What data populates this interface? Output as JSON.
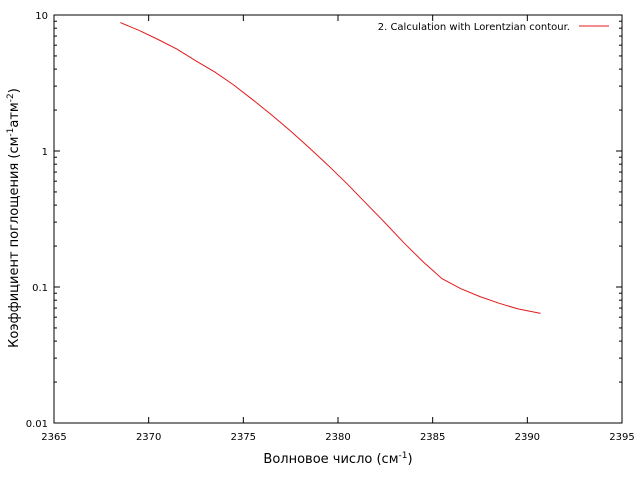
{
  "chart_data": {
    "type": "line",
    "title": "",
    "xlabel": {
      "main": "Волновое число (см",
      "sup": "-1",
      "tail": ")"
    },
    "ylabel": {
      "part1": "Коэффициент поглощения (см",
      "sup1": "-1",
      "part2": "атм",
      "sup2": "-2",
      "part3": ")"
    },
    "xlim": [
      2365,
      2395
    ],
    "ylim": [
      0.01,
      10
    ],
    "yscale": "log",
    "grid": false,
    "legend_position": "top-right",
    "x_ticks": [
      2365,
      2370,
      2375,
      2380,
      2385,
      2390,
      2395
    ],
    "x_tick_labels": [
      "2365",
      "2370",
      "2375",
      "2380",
      "2385",
      "2390",
      "2395"
    ],
    "y_ticks": [
      0.01,
      0.1,
      1,
      10
    ],
    "y_tick_labels": [
      "0.01",
      "0.1",
      "1",
      "10"
    ],
    "series": [
      {
        "name": "2. Calculation with Lorentzian contour.",
        "color": "#e41a1c",
        "x": [
          2368.5,
          2369.5,
          2370.5,
          2371.5,
          2372.5,
          2373.5,
          2374.5,
          2375.5,
          2376.5,
          2377.5,
          2378.5,
          2379.5,
          2380.5,
          2381.5,
          2382.5,
          2383.5,
          2384.5,
          2385.5,
          2386.5,
          2387.5,
          2388.5,
          2389.5,
          2390.7
        ],
        "y": [
          8.8,
          7.7,
          6.6,
          5.6,
          4.6,
          3.8,
          3.05,
          2.38,
          1.84,
          1.4,
          1.05,
          0.78,
          0.57,
          0.41,
          0.295,
          0.21,
          0.153,
          0.115,
          0.097,
          0.085,
          0.076,
          0.069,
          0.064
        ]
      }
    ]
  }
}
